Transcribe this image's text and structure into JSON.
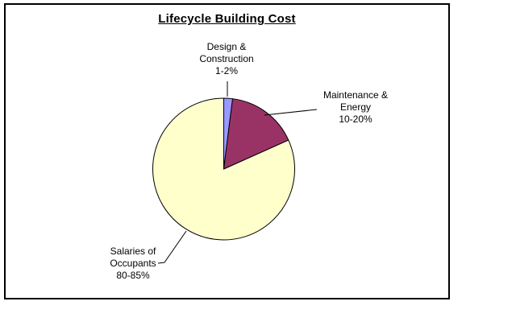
{
  "window": {
    "background_color": "#FFFFFF",
    "frame_border_color": "#000000"
  },
  "chart_data": {
    "type": "pie",
    "title": "Lifecycle Building Cost",
    "legend": "none",
    "direction": "clockwise",
    "start_angle_deg": 0,
    "outline_color": "#000000",
    "slices": [
      {
        "label": "Design & Construction",
        "range_label": "1-2%",
        "value": 2,
        "color": "#9999FF",
        "label_lines": [
          "Design &",
          "Construction",
          "1-2%"
        ]
      },
      {
        "label": "Maintenance & Energy",
        "range_label": "10-20%",
        "value": 16.3,
        "color": "#993366",
        "label_lines": [
          "Maintenance &",
          "Energy",
          "10-20%"
        ]
      },
      {
        "label": "Salaries of Occupants",
        "range_label": "80-85%",
        "value": 81.7,
        "color": "#FFFFCC",
        "label_lines": [
          "Salaries of",
          "Occupants",
          "80-85%"
        ]
      }
    ]
  }
}
